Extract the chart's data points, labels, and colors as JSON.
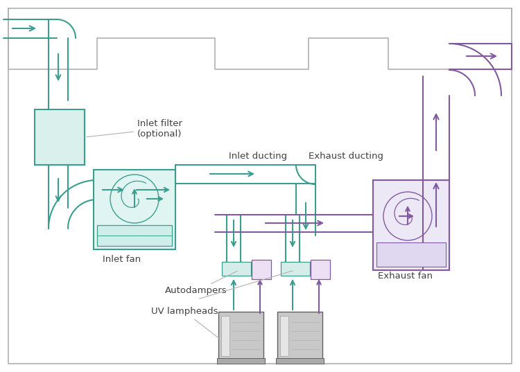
{
  "teal": "#3a9d8e",
  "purple": "#8059a0",
  "lgray": "#b0b0b0",
  "dgray": "#606060",
  "midgray": "#c8c8c8",
  "white": "#ffffff",
  "lc": "#404040",
  "labels": {
    "inlet_filter": "Inlet filter\n(optional)",
    "inlet_ducting": "Inlet ducting",
    "exhaust_ducting": "Exhaust ducting",
    "inlet_fan": "Inlet fan",
    "exhaust_fan": "Exhaust fan",
    "autodampers": "Autodampers",
    "uv_lampheads": "UV lampheads"
  },
  "fig_width": 7.5,
  "fig_height": 5.37,
  "dpi": 100
}
